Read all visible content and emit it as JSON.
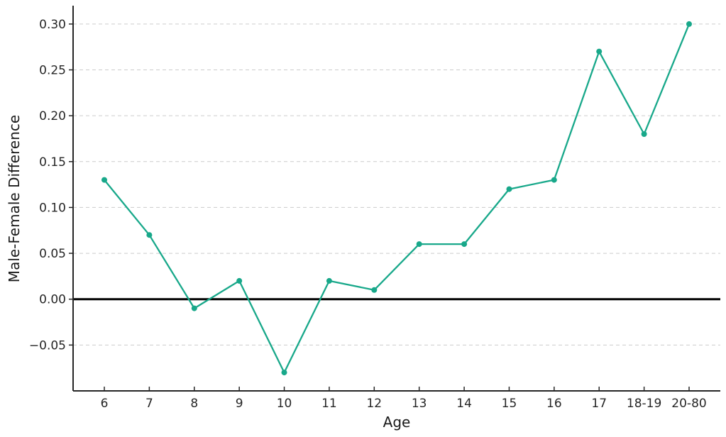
{
  "chart_data": {
    "type": "line",
    "title": "",
    "xlabel": "Age",
    "ylabel": "Male-Female Difference",
    "categories": [
      "6",
      "7",
      "8",
      "9",
      "10",
      "11",
      "12",
      "13",
      "14",
      "15",
      "16",
      "17",
      "18-19",
      "20-80"
    ],
    "series": [
      {
        "name": "Male-Female Difference",
        "values": [
          0.13,
          0.07,
          -0.01,
          0.02,
          -0.08,
          0.02,
          0.01,
          0.06,
          0.06,
          0.12,
          0.13,
          0.27,
          0.18,
          0.3
        ]
      }
    ],
    "ylim": [
      -0.1,
      0.32
    ],
    "yticks": [
      {
        "value": -0.05,
        "label": "−0.05"
      },
      {
        "value": 0.0,
        "label": "0.00"
      },
      {
        "value": 0.05,
        "label": "0.05"
      },
      {
        "value": 0.1,
        "label": "0.10"
      },
      {
        "value": 0.15,
        "label": "0.15"
      },
      {
        "value": 0.2,
        "label": "0.20"
      },
      {
        "value": 0.25,
        "label": "0.25"
      },
      {
        "value": 0.3,
        "label": "0.30"
      }
    ],
    "grid": "horizontal-dashed",
    "legend": "none",
    "zero_line": {
      "value": 0.0,
      "color": "#000000",
      "width": 3
    },
    "line_color": "#18a88a",
    "marker": "circle",
    "marker_radius": 4,
    "line_width": 2.3,
    "axis_color": "#262626",
    "grid_color": "#cccccc",
    "tick_label_color": "#262626",
    "background": "#ffffff"
  }
}
